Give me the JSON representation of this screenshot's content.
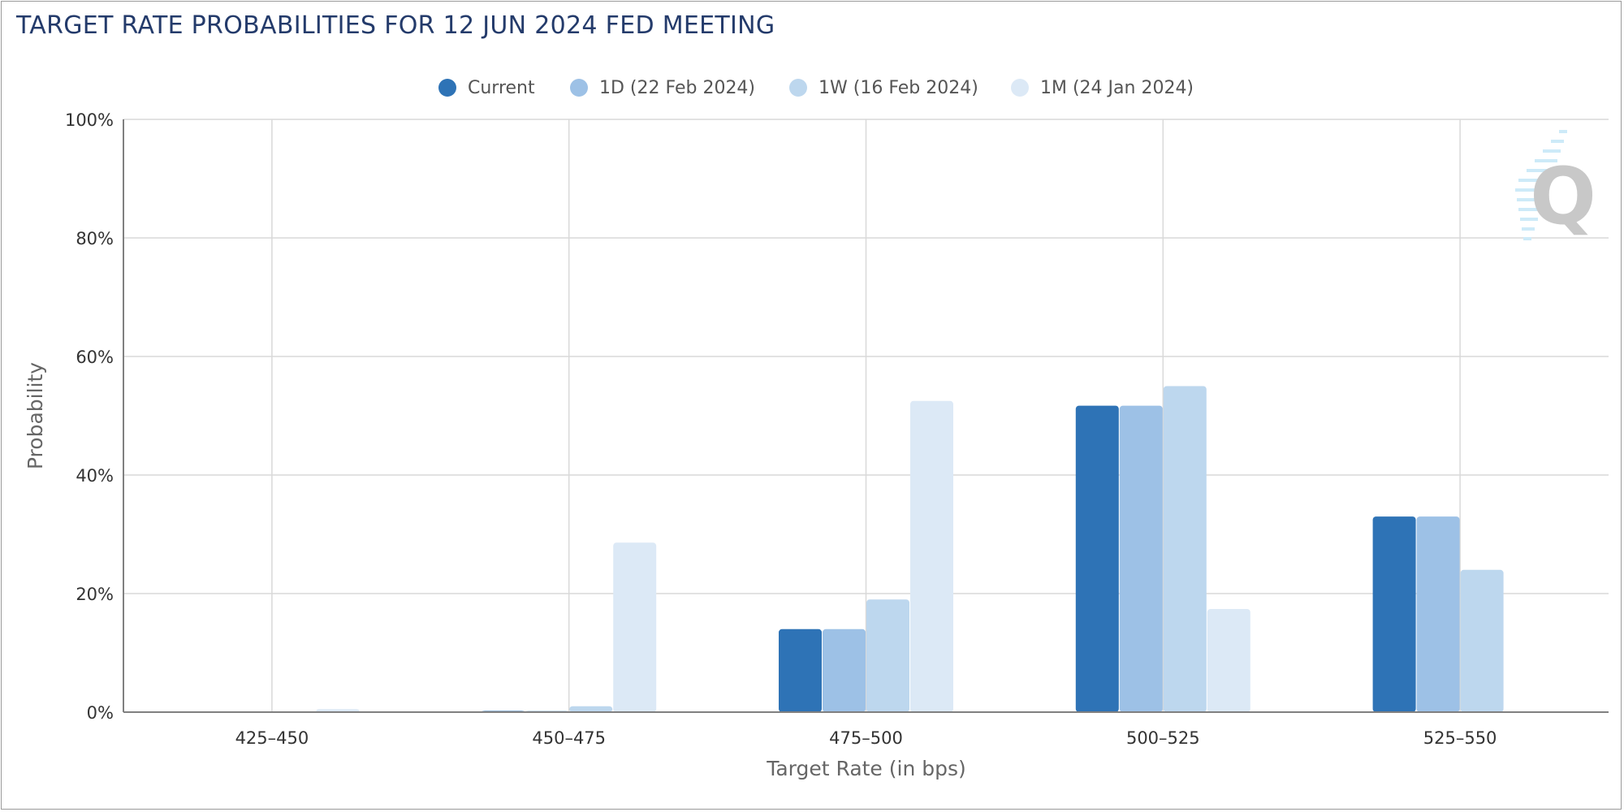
{
  "header": {
    "title": "TARGET RATE PROBABILITIES FOR 12 JUN 2024 FED MEETING"
  },
  "legend": {
    "items": [
      {
        "label": "Current",
        "color": "#2e73b6"
      },
      {
        "label": "1D (22 Feb 2024)",
        "color": "#9dc1e6"
      },
      {
        "label": "1W (16 Feb 2024)",
        "color": "#bdd7ee"
      },
      {
        "label": "1M (24 Jan 2024)",
        "color": "#dce9f6"
      }
    ]
  },
  "watermark": {
    "label": "Q",
    "icon": "quikstrike-logo-icon"
  },
  "chart_data": {
    "type": "bar",
    "title": "TARGET RATE PROBABILITIES FOR 12 JUN 2024 FED MEETING",
    "xlabel": "Target Rate (in bps)",
    "ylabel": "Probability",
    "categories": [
      "425-450",
      "450-475",
      "475-500",
      "500-525",
      "525-550"
    ],
    "y_ticks": [
      "0%",
      "20%",
      "40%",
      "60%",
      "80%",
      "100%"
    ],
    "ylim": [
      0,
      100
    ],
    "grid": true,
    "legend_position": "top-center",
    "series": [
      {
        "name": "Current",
        "color": "#2e73b6",
        "values": [
          0,
          0.2,
          14.0,
          51.7,
          33.0
        ]
      },
      {
        "name": "1D (22 Feb 2024)",
        "color": "#9dc1e6",
        "values": [
          0,
          0.2,
          14.0,
          51.7,
          33.0
        ]
      },
      {
        "name": "1W (16 Feb 2024)",
        "color": "#bdd7ee",
        "values": [
          0,
          1.0,
          19.0,
          55.0,
          24.0
        ]
      },
      {
        "name": "1M (24 Jan 2024)",
        "color": "#dce9f6",
        "values": [
          0.5,
          28.6,
          52.5,
          17.4,
          0
        ]
      }
    ]
  }
}
